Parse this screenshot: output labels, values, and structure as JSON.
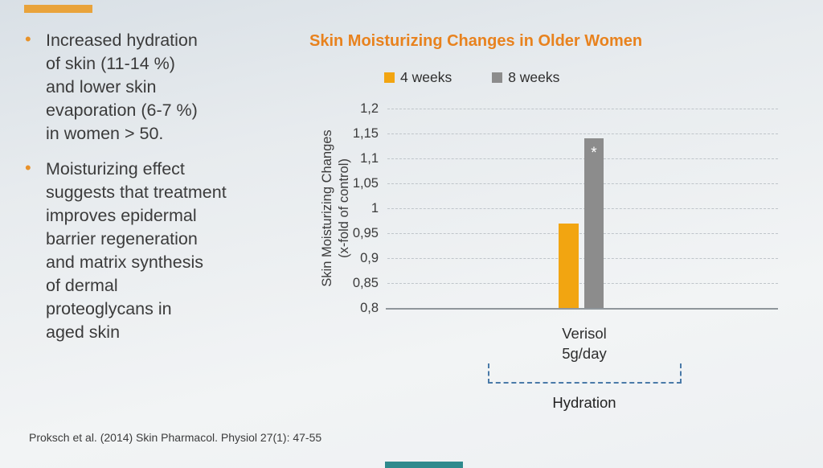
{
  "accents": {
    "top_bar_color": "#e9a33b",
    "bottom_bar_color": "#2e8a8d"
  },
  "bullet_glyph": "•",
  "bullets": [
    {
      "text": "Increased hydration\nof skin (11-14 %)\nand lower skin\nevaporation (6-7 %)\nin women > 50."
    },
    {
      "text": "Moisturizing effect\nsuggests that treatment\nimproves epidermal\nbarrier regeneration\nand matrix synthesis\nof dermal\nproteoglycans in\naged skin"
    }
  ],
  "citation": "Proksch et al. (2014) Skin Pharmacol. Physiol 27(1): 47-55",
  "chart_data": {
    "type": "bar",
    "title": "Skin Moisturizing Changes in Older Women",
    "title_color": "#e8821e",
    "categories": [
      "Verisol\n5g/day"
    ],
    "series": [
      {
        "name": "4 weeks",
        "color": "#f2a511",
        "values": [
          0.97
        ]
      },
      {
        "name": "8 weeks",
        "color": "#8c8c8c",
        "values": [
          1.14
        ],
        "annotation": "*"
      }
    ],
    "ylabel": "Skin Moisturizing Changes\n(x-fold of control)",
    "ylim": [
      0.8,
      1.2
    ],
    "yticks": [
      1.2,
      1.15,
      1.1,
      1.05,
      1.0,
      0.95,
      0.9,
      0.85,
      0.8
    ],
    "ytick_labels": [
      "1,2",
      "1,15",
      "1,1",
      "1,05",
      "1",
      "0,95",
      "0,9",
      "0,85",
      "0,8"
    ],
    "grid": "horizontal-dashed",
    "legend_position": "top",
    "group_label": "Hydration"
  }
}
